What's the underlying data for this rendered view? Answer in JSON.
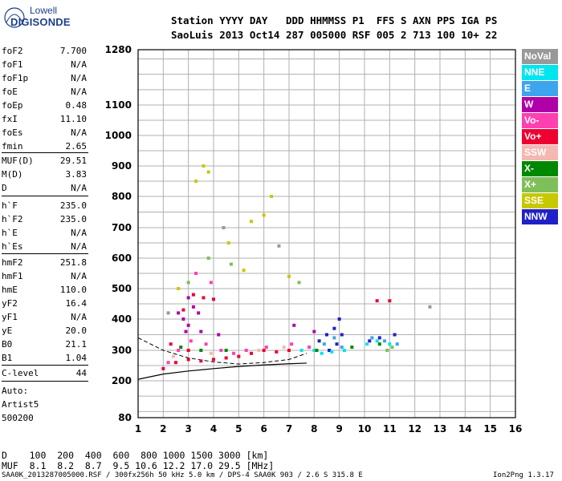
{
  "logo": {
    "top": "Lowell",
    "bottom": "DIGISONDE"
  },
  "header": {
    "line1": "Station YYYY DAY   DDD HHMMSS P1  FFS S AXN PPS IGA PS",
    "line2": "SaoLuis 2013 Oct14 287 005000 RSF 005 2 713 100 10+ 22"
  },
  "params": {
    "group1": [
      {
        "name": "foF2",
        "value": "7.700"
      },
      {
        "name": "foF1",
        "value": "N/A"
      },
      {
        "name": "foF1p",
        "value": "N/A"
      },
      {
        "name": "foE",
        "value": "N/A"
      },
      {
        "name": "foEp",
        "value": "0.48"
      },
      {
        "name": "fxI",
        "value": "11.10"
      },
      {
        "name": "foEs",
        "value": "N/A"
      },
      {
        "name": "fmin",
        "value": "2.65"
      }
    ],
    "group2": [
      {
        "name": "MUF(D)",
        "value": "29.51"
      },
      {
        "name": "M(D)",
        "value": "3.83"
      },
      {
        "name": "D",
        "value": "N/A"
      }
    ],
    "group3": [
      {
        "name": "h`F",
        "value": "235.0"
      },
      {
        "name": "h`F2",
        "value": "235.0"
      },
      {
        "name": "h`E",
        "value": "N/A"
      },
      {
        "name": "h`Es",
        "value": "N/A"
      }
    ],
    "group4": [
      {
        "name": "hmF2",
        "value": "251.8"
      },
      {
        "name": "hmF1",
        "value": "N/A"
      },
      {
        "name": "hmE",
        "value": "110.0"
      },
      {
        "name": "yF2",
        "value": "16.4"
      },
      {
        "name": "yF1",
        "value": "N/A"
      },
      {
        "name": "yE",
        "value": "20.0"
      },
      {
        "name": "B0",
        "value": "21.1"
      },
      {
        "name": "B1",
        "value": "1.04"
      }
    ],
    "group5": [
      {
        "name": "C-level",
        "value": "44"
      }
    ],
    "auto": [
      "Auto:",
      "Artist5",
      "500200"
    ]
  },
  "legend": [
    {
      "label": "NoVal",
      "color": "#999999"
    },
    {
      "label": "NNE",
      "color": "#00e5ee"
    },
    {
      "label": "E",
      "color": "#3da5ee"
    },
    {
      "label": "W",
      "color": "#b000a8"
    },
    {
      "label": "Vo-",
      "color": "#ff40b0"
    },
    {
      "label": "Vo+",
      "color": "#ee0030"
    },
    {
      "label": "SSW",
      "color": "#f5b7b2"
    },
    {
      "label": "X-",
      "color": "#008800"
    },
    {
      "label": "X+",
      "color": "#7fbf5a"
    },
    {
      "label": "SSE",
      "color": "#c8c800"
    },
    {
      "label": "NNW",
      "color": "#2020c8"
    }
  ],
  "muf_table": {
    "d_line": "D    100  200  400  600  800 1000 1500 3000 [km]",
    "muf_line": "MUF  8.1  8.2  8.7  9.5 10.6 12.2 17.0 29.5 [MHz]"
  },
  "footer": {
    "left": "SAA0K_2013287005000.RSF / 300fx256h 50 kHz 5.0 km / DPS-4 SAA0K 903 / 2.6 S 315.8 E",
    "right": "Ion2Png 1.3.17"
  },
  "chart_data": {
    "type": "scatter",
    "xlim": [
      1,
      16
    ],
    "ylim": [
      80,
      1280
    ],
    "x_ticks": [
      "1",
      "2",
      "3",
      "4",
      "5",
      "6",
      "7",
      "8",
      "9",
      "10",
      "11",
      "12",
      "13",
      "14",
      "15",
      "16"
    ],
    "y_ticks": [
      "80",
      "200",
      "300",
      "400",
      "500",
      "600",
      "700",
      "800",
      "900",
      "1000",
      "1100",
      "1280"
    ],
    "grid": true,
    "series": [
      {
        "name": "Vo+",
        "points": [
          [
            2.0,
            240
          ],
          [
            2.5,
            260
          ],
          [
            3.0,
            270
          ],
          [
            3.5,
            265
          ],
          [
            4.0,
            270
          ],
          [
            4.5,
            275
          ],
          [
            5.0,
            280
          ],
          [
            5.5,
            290
          ],
          [
            6.0,
            300
          ],
          [
            6.5,
            295
          ],
          [
            7.0,
            300
          ],
          [
            3.2,
            480
          ],
          [
            3.6,
            470
          ],
          [
            4.0,
            465
          ],
          [
            2.8,
            430
          ],
          [
            10.5,
            460
          ],
          [
            11.0,
            460
          ],
          [
            3.0,
            300
          ],
          [
            2.3,
            320
          ]
        ]
      },
      {
        "name": "W",
        "points": [
          [
            2.6,
            420
          ],
          [
            2.8,
            400
          ],
          [
            3.0,
            380
          ],
          [
            3.2,
            440
          ],
          [
            3.4,
            420
          ],
          [
            3.0,
            470
          ],
          [
            2.9,
            360
          ],
          [
            3.5,
            360
          ],
          [
            4.2,
            350
          ],
          [
            7.2,
            380
          ],
          [
            8.0,
            360
          ]
        ]
      },
      {
        "name": "Vo-",
        "points": [
          [
            2.2,
            260
          ],
          [
            2.6,
            300
          ],
          [
            3.1,
            330
          ],
          [
            3.7,
            320
          ],
          [
            4.3,
            300
          ],
          [
            4.8,
            290
          ],
          [
            5.3,
            300
          ],
          [
            6.1,
            310
          ],
          [
            7.1,
            320
          ],
          [
            7.8,
            310
          ],
          [
            3.3,
            550
          ],
          [
            3.9,
            520
          ]
        ]
      },
      {
        "name": "NNW",
        "points": [
          [
            8.2,
            330
          ],
          [
            8.5,
            350
          ],
          [
            8.8,
            370
          ],
          [
            9.0,
            400
          ],
          [
            8.6,
            300
          ],
          [
            8.9,
            320
          ],
          [
            9.1,
            350
          ],
          [
            10.2,
            330
          ],
          [
            10.6,
            340
          ],
          [
            11.2,
            350
          ]
        ]
      },
      {
        "name": "NNE",
        "points": [
          [
            8.0,
            300
          ],
          [
            8.3,
            290
          ],
          [
            8.7,
            295
          ],
          [
            9.2,
            300
          ],
          [
            10.1,
            320
          ],
          [
            10.5,
            330
          ],
          [
            11.0,
            320
          ],
          [
            7.5,
            300
          ]
        ]
      },
      {
        "name": "E",
        "points": [
          [
            8.4,
            320
          ],
          [
            8.8,
            340
          ],
          [
            9.1,
            310
          ],
          [
            10.3,
            340
          ],
          [
            10.8,
            330
          ],
          [
            11.3,
            320
          ]
        ]
      },
      {
        "name": "SSE",
        "points": [
          [
            3.3,
            850
          ],
          [
            3.6,
            900
          ],
          [
            3.8,
            880
          ],
          [
            6.0,
            740
          ],
          [
            5.5,
            720
          ],
          [
            2.6,
            500
          ],
          [
            4.6,
            650
          ],
          [
            6.3,
            800
          ],
          [
            7.0,
            540
          ],
          [
            5.2,
            560
          ]
        ]
      },
      {
        "name": "X-",
        "points": [
          [
            2.7,
            310
          ],
          [
            3.5,
            300
          ],
          [
            8.1,
            300
          ],
          [
            9.5,
            310
          ],
          [
            10.6,
            320
          ],
          [
            4.5,
            300
          ]
        ]
      },
      {
        "name": "X+",
        "points": [
          [
            3.0,
            520
          ],
          [
            3.8,
            600
          ],
          [
            4.7,
            580
          ],
          [
            7.4,
            520
          ],
          [
            11.1,
            310
          ],
          [
            10.9,
            300
          ]
        ]
      },
      {
        "name": "SSW",
        "points": [
          [
            2.4,
            280
          ],
          [
            3.9,
            290
          ],
          [
            5.8,
            300
          ],
          [
            6.8,
            310
          ]
        ]
      },
      {
        "name": "NoVal",
        "points": [
          [
            2.2,
            420
          ],
          [
            4.4,
            700
          ],
          [
            6.6,
            640
          ],
          [
            12.6,
            440
          ]
        ]
      }
    ]
  }
}
